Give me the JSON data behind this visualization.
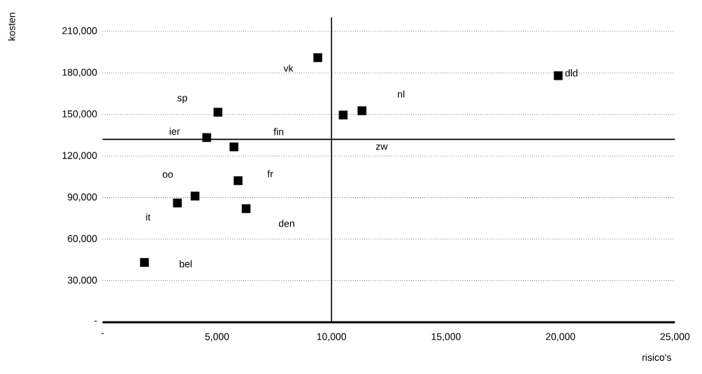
{
  "chart_data": {
    "type": "scatter",
    "xlabel": "risico's",
    "ylabel": "kosten",
    "x": [
      9400,
      19900,
      5040,
      11330,
      4550,
      5740,
      10510,
      4040,
      5920,
      3270,
      6270,
      1830
    ],
    "values": [
      191000,
      178000,
      151600,
      152700,
      133300,
      126600,
      149600,
      91100,
      102200,
      86100,
      82000,
      43200
    ],
    "color": "#000000",
    "marker": "square",
    "grid": "y",
    "xlim": [
      0,
      25000
    ],
    "ylim": [
      0,
      220000
    ],
    "xticks": [
      {
        "value": 0,
        "label": "-"
      },
      {
        "value": 5000,
        "label": "5,000"
      },
      {
        "value": 10000,
        "label": "10,000"
      },
      {
        "value": 15000,
        "label": "15,000"
      },
      {
        "value": 20000,
        "label": "20,000"
      },
      {
        "value": 25000,
        "label": "25,000"
      }
    ],
    "yticks": [
      {
        "value": 0,
        "label": "-"
      },
      {
        "value": 30000,
        "label": "30,000"
      },
      {
        "value": 60000,
        "label": "60,000"
      },
      {
        "value": 90000,
        "label": "90,000"
      },
      {
        "value": 120000,
        "label": "120,000"
      },
      {
        "value": 150000,
        "label": "150,000"
      },
      {
        "value": 180000,
        "label": "180,000"
      },
      {
        "value": 210000,
        "label": "210,000"
      }
    ],
    "ref_lines": [
      {
        "axis": "y",
        "value": 132000
      },
      {
        "axis": "x",
        "value": 10000
      }
    ],
    "annotations": [
      "vk",
      "dld",
      "sp",
      "nl",
      "ier",
      "fin",
      "zw",
      "oo",
      "fr",
      "it",
      "den",
      "bel"
    ]
  }
}
